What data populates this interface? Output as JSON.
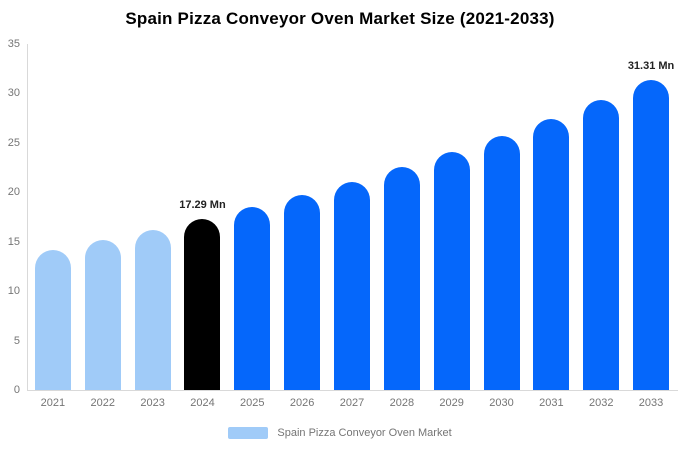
{
  "chart_data": {
    "type": "bar",
    "title": "Spain Pizza Conveyor Oven Market Size (2021-2033)",
    "unit": "Mn",
    "categories": [
      "2021",
      "2022",
      "2023",
      "2024",
      "2025",
      "2026",
      "2027",
      "2028",
      "2029",
      "2030",
      "2031",
      "2032",
      "2033"
    ],
    "values": [
      14.19,
      15.16,
      16.19,
      17.29,
      18.47,
      19.73,
      21.07,
      22.51,
      24.04,
      25.68,
      27.43,
      29.3,
      31.31
    ],
    "point_labels": [
      "",
      "",
      "",
      "17.29 Mn",
      "",
      "",
      "",
      "",
      "",
      "",
      "",
      "",
      "31.31 Mn"
    ],
    "bar_styles": [
      "past",
      "past",
      "past",
      "current",
      "forecast",
      "forecast",
      "forecast",
      "forecast",
      "forecast",
      "forecast",
      "forecast",
      "forecast",
      "forecast"
    ],
    "colors": {
      "past": "#A0CBF8",
      "current": "#000000",
      "forecast": "#0567FB",
      "axis": "#D9D9D9",
      "tick_text": "#757575",
      "value_label_text": "#222222",
      "title_text": "#000000",
      "background": "#FFFFFF"
    },
    "ylim": [
      0,
      35
    ],
    "yticks": [
      "0",
      "5",
      "10",
      "15",
      "20",
      "25",
      "30",
      "35"
    ],
    "grid": false,
    "xlabel": "",
    "ylabel": "",
    "legend": {
      "position": "bottom",
      "items": [
        {
          "label": "Spain Pizza Conveyor Oven Market",
          "swatch_color": "#A0CBF8"
        }
      ]
    }
  }
}
